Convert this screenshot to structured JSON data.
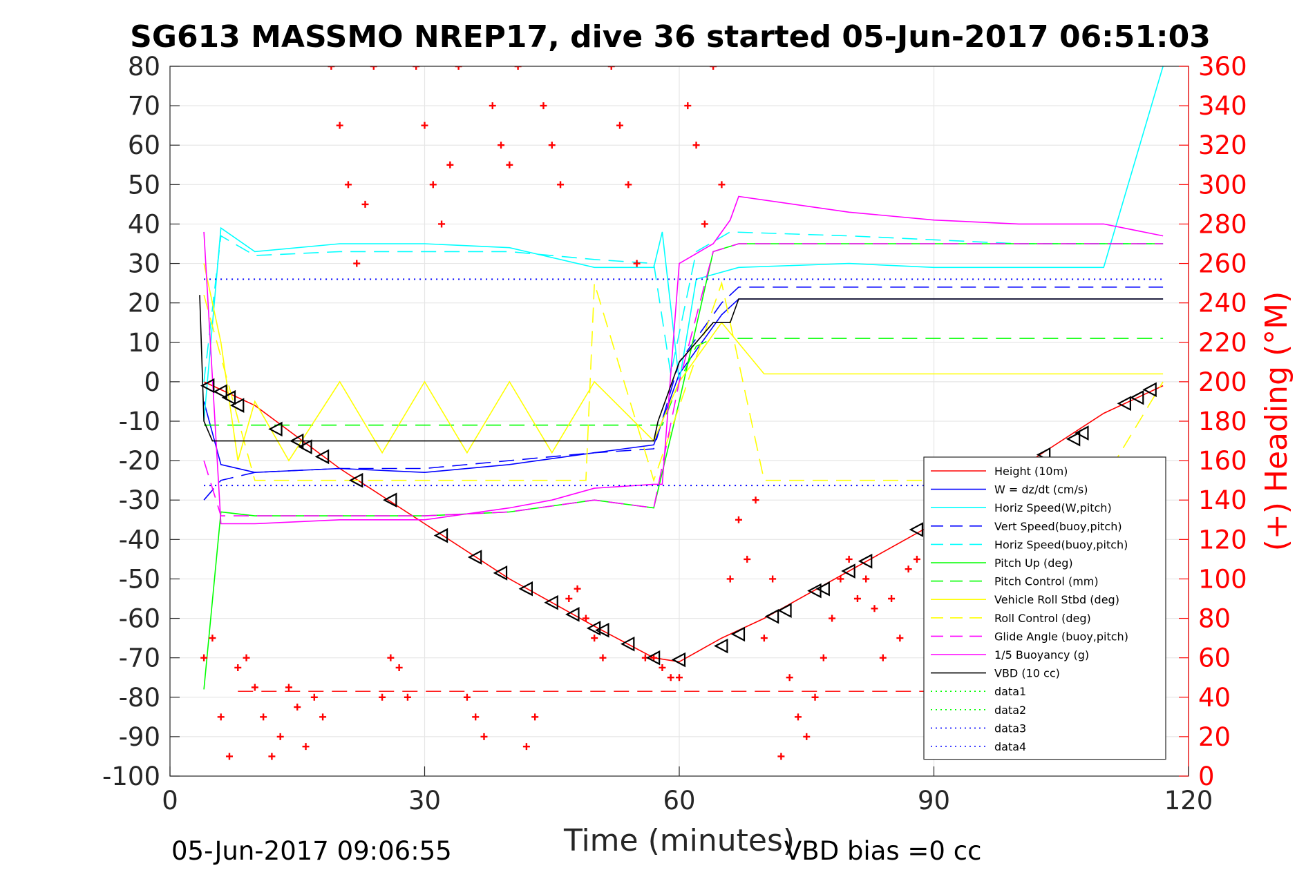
{
  "chart_data": {
    "type": "line",
    "title": "SG613 MASSMO NREP17, dive 36 started 05-Jun-2017 06:51:03",
    "xlabel": "Time (minutes)",
    "ylabel_right": "(+) Heading (°M)",
    "xlim": [
      0,
      120
    ],
    "ylim": [
      -100,
      80
    ],
    "ylim_right": [
      0,
      360
    ],
    "xticks": [
      "0",
      "30",
      "60",
      "90",
      "120"
    ],
    "yticks": [
      "80",
      "70",
      "60",
      "50",
      "40",
      "30",
      "20",
      "10",
      "0",
      "-10",
      "-20",
      "-30",
      "-40",
      "-50",
      "-60",
      "-70",
      "-80",
      "-90",
      "-100"
    ],
    "yticks_right": [
      "360",
      "340",
      "320",
      "300",
      "280",
      "260",
      "240",
      "220",
      "200",
      "180",
      "160",
      "140",
      "120",
      "100",
      "80",
      "60",
      "40",
      "20",
      "0"
    ],
    "grid": true,
    "legend_position": "lower-right",
    "footer_left": "05-Jun-2017 09:06:55",
    "footer_right": "VBD bias =0 cc",
    "legend": [
      {
        "label": "Height (10m)",
        "color": "#ff0000",
        "style": "solid"
      },
      {
        "label": "W = dz/dt (cm/s)",
        "color": "#0000ff",
        "style": "solid"
      },
      {
        "label": "Horiz Speed(W,pitch)",
        "color": "#00ffff",
        "style": "solid"
      },
      {
        "label": "Vert Speed(buoy,pitch)",
        "color": "#0000ff",
        "style": "dashed"
      },
      {
        "label": "Horiz Speed(buoy,pitch)",
        "color": "#00ffff",
        "style": "dashed"
      },
      {
        "label": "Pitch Up (deg)",
        "color": "#00ff00",
        "style": "solid"
      },
      {
        "label": "Pitch Control (mm)",
        "color": "#00ff00",
        "style": "dashed"
      },
      {
        "label": "Vehicle Roll Stbd (deg)",
        "color": "#ffff00",
        "style": "solid"
      },
      {
        "label": "Roll Control (deg)",
        "color": "#ffff00",
        "style": "dashed"
      },
      {
        "label": "Glide Angle (buoy,pitch)",
        "color": "#ff00ff",
        "style": "dashed"
      },
      {
        "label": "1/5 Buoyancy (g)",
        "color": "#ff00ff",
        "style": "solid"
      },
      {
        "label": "VBD (10 cc)",
        "color": "#000000",
        "style": "solid"
      },
      {
        "label": "data1",
        "color": "#00ff00",
        "style": "dotted"
      },
      {
        "label": "data2",
        "color": "#00ff00",
        "style": "dotted"
      },
      {
        "label": "data3",
        "color": "#0000ff",
        "style": "dotted"
      },
      {
        "label": "data4",
        "color": "#0000ff",
        "style": "dotted"
      }
    ],
    "series": [
      {
        "name": "Height (10m)",
        "color": "#ff0000",
        "style": "solid",
        "x": [
          4,
          10,
          20,
          30,
          40,
          50,
          57,
          60,
          65,
          70,
          80,
          90,
          100,
          110,
          117
        ],
        "y": [
          0,
          -6,
          -22,
          -36,
          -50,
          -62,
          -70,
          -71,
          -65,
          -60,
          -48,
          -36,
          -22,
          -8,
          -1
        ]
      },
      {
        "name": "W = dz/dt (cm/s)",
        "color": "#0000ff",
        "style": "solid",
        "x": [
          4,
          6,
          10,
          20,
          30,
          40,
          50,
          57,
          60,
          65,
          67,
          80,
          90,
          100,
          110,
          117
        ],
        "y": [
          -5,
          -21,
          -23,
          -22,
          -23,
          -21,
          -18,
          -16,
          2,
          17,
          21,
          21,
          21,
          21,
          21,
          21
        ]
      },
      {
        "name": "Horiz Speed(W,pitch)",
        "color": "#00ffff",
        "style": "solid",
        "x": [
          4,
          6,
          10,
          20,
          30,
          40,
          50,
          57,
          58,
          60,
          62,
          67,
          80,
          90,
          100,
          110,
          117
        ],
        "y": [
          -10,
          39,
          33,
          35,
          35,
          34,
          29,
          29,
          38,
          0,
          26,
          29,
          30,
          29,
          29,
          29,
          80
        ]
      },
      {
        "name": "Vert Speed(buoy,pitch)",
        "color": "#0000ff",
        "style": "dashed",
        "x": [
          4,
          6,
          10,
          20,
          30,
          40,
          50,
          57,
          60,
          65,
          67,
          80,
          90,
          100,
          110,
          117
        ],
        "y": [
          -30,
          -25,
          -23,
          -22,
          -22,
          -20,
          -18,
          -17,
          5,
          20,
          24,
          24,
          24,
          24,
          24,
          24
        ]
      },
      {
        "name": "Horiz Speed(buoy,pitch)",
        "color": "#00ffff",
        "style": "dashed",
        "x": [
          4,
          6,
          10,
          20,
          30,
          40,
          50,
          57,
          59,
          62,
          66,
          80,
          90,
          100,
          110,
          117
        ],
        "y": [
          0,
          37,
          32,
          33,
          33,
          33,
          31,
          30,
          2,
          33,
          38,
          37,
          36,
          35,
          35,
          35
        ]
      },
      {
        "name": "Pitch Up (deg)",
        "color": "#00ff00",
        "style": "solid",
        "x": [
          4,
          6,
          10,
          20,
          30,
          40,
          50,
          57,
          60,
          64,
          67,
          80,
          90,
          100,
          110,
          117
        ],
        "y": [
          -78,
          -33,
          -34,
          -34,
          -34,
          -33,
          -30,
          -32,
          -5,
          33,
          35,
          35,
          35,
          35,
          35,
          35
        ]
      },
      {
        "name": "Pitch Control (mm)",
        "color": "#00ff00",
        "style": "dashed",
        "x": [
          4,
          57,
          58,
          60,
          62,
          64,
          117
        ],
        "y": [
          -11,
          -11,
          -11,
          0,
          9,
          11,
          11
        ]
      },
      {
        "name": "Vehicle Roll Stbd (deg)",
        "color": "#ffff00",
        "style": "solid",
        "x": [
          4,
          6,
          8,
          10,
          14,
          20,
          25,
          30,
          35,
          40,
          45,
          50,
          57,
          60,
          65,
          70,
          80,
          90,
          100,
          110,
          117
        ],
        "y": [
          30,
          10,
          -20,
          -5,
          -20,
          0,
          -18,
          0,
          -18,
          0,
          -18,
          0,
          -15,
          0,
          15,
          2,
          2,
          2,
          2,
          2,
          2
        ]
      },
      {
        "name": "Roll Control (deg)",
        "color": "#ffff00",
        "style": "dashed",
        "x": [
          4,
          10,
          20,
          30,
          40,
          49,
          50,
          57,
          65,
          70,
          80,
          90,
          100,
          110,
          117
        ],
        "y": [
          22,
          -25,
          -25,
          -25,
          -25,
          -25,
          25,
          -25,
          25,
          -25,
          -25,
          -25,
          -25,
          -25,
          0
        ]
      },
      {
        "name": "Glide Angle (buoy,pitch)",
        "color": "#ff00ff",
        "style": "dashed",
        "x": [
          4,
          6,
          10,
          20,
          30,
          40,
          50,
          57,
          60,
          64,
          67,
          80,
          90,
          100,
          110,
          117
        ],
        "y": [
          -20,
          -34,
          -34,
          -34,
          -34,
          -33,
          -30,
          -32,
          0,
          33,
          35,
          35,
          35,
          35,
          35,
          35
        ]
      },
      {
        "name": "1/5 Buoyancy (g)",
        "color": "#ff00ff",
        "style": "solid",
        "x": [
          4,
          6,
          10,
          20,
          30,
          40,
          45,
          50,
          57,
          58,
          60,
          64,
          66,
          67,
          80,
          90,
          100,
          110,
          117
        ],
        "y": [
          38,
          -36,
          -36,
          -35,
          -35,
          -32,
          -30,
          -27,
          -26,
          -26,
          30,
          35,
          41,
          47,
          43,
          41,
          40,
          40,
          37
        ]
      },
      {
        "name": "VBD (10 cc)",
        "color": "#000000",
        "style": "solid",
        "x": [
          3.5,
          4,
          5,
          57,
          57.5,
          60,
          62,
          64,
          66,
          67,
          117
        ],
        "y": [
          22,
          -10,
          -15,
          -15,
          -10,
          5,
          10,
          15,
          15,
          21,
          21
        ]
      },
      {
        "name": "data1",
        "color": "#00ff00",
        "style": "dotted",
        "x": [],
        "y": []
      },
      {
        "name": "data2",
        "color": "#00ff00",
        "style": "dotted",
        "x": [],
        "y": []
      },
      {
        "name": "data3",
        "color": "#0000ff",
        "style": "dotted",
        "x": [
          4,
          117
        ],
        "y": [
          26,
          26
        ]
      },
      {
        "name": "data4",
        "color": "#0000ff",
        "style": "dotted",
        "x": [
          4,
          90
        ],
        "y": [
          -26.3,
          -26.3
        ]
      }
    ],
    "reference_lines": [
      {
        "color": "#ff0000",
        "style": "dashed",
        "axis": "left",
        "y": -78.5,
        "x": [
          8,
          117
        ]
      }
    ],
    "heading_points": {
      "color": "#ff0000",
      "marker": "+",
      "axis": "right",
      "x": [
        4,
        5,
        6,
        7,
        8,
        9,
        10,
        11,
        12,
        13,
        14,
        15,
        16,
        17,
        18,
        19,
        20,
        21,
        22,
        23,
        24,
        25,
        26,
        27,
        28,
        29,
        30,
        31,
        32,
        33,
        34,
        35,
        36,
        37,
        38,
        39,
        40,
        41,
        42,
        43,
        44,
        45,
        46,
        47,
        48,
        49,
        50,
        51,
        52,
        53,
        54,
        55,
        56,
        57,
        58,
        59,
        60,
        61,
        62,
        63,
        64,
        65,
        66,
        67,
        68,
        69,
        70,
        71,
        72,
        73,
        74,
        75,
        76,
        77,
        78,
        79,
        80,
        81,
        82,
        83,
        84,
        85,
        86,
        87,
        88
      ],
      "y": [
        60,
        70,
        30,
        10,
        55,
        60,
        45,
        30,
        10,
        20,
        45,
        35,
        15,
        40,
        30,
        360,
        330,
        300,
        260,
        290,
        360,
        40,
        60,
        55,
        40,
        360,
        330,
        300,
        280,
        310,
        360,
        40,
        30,
        20,
        340,
        320,
        310,
        360,
        15,
        30,
        340,
        320,
        300,
        90,
        95,
        80,
        70,
        60,
        360,
        330,
        300,
        260,
        60,
        60,
        55,
        50,
        50,
        340,
        320,
        280,
        360,
        300,
        100,
        130,
        110,
        140,
        70,
        100,
        10,
        50,
        30,
        20,
        40,
        60,
        80,
        100,
        110,
        90,
        100,
        85,
        60,
        90,
        70,
        105,
        110
      ]
    },
    "depth_markers": {
      "marker": "triangle-left",
      "color": "#000000",
      "axis": "left",
      "x": [
        4.5,
        6,
        7,
        8,
        12.5,
        15,
        16,
        18,
        22,
        26,
        32,
        36,
        39,
        42,
        45,
        47.5,
        50,
        51,
        54,
        57,
        60,
        65,
        67,
        71,
        72.5,
        76,
        77,
        80,
        82,
        88,
        103,
        106.5,
        107.5,
        112.5,
        114,
        115.5
      ],
      "y": [
        -1,
        -2.5,
        -4,
        -6,
        -12,
        -15,
        -16.5,
        -19,
        -25,
        -30,
        -39,
        -44.5,
        -48.5,
        -52.5,
        -56,
        -59,
        -62.5,
        -63,
        -66.5,
        -70,
        -70.5,
        -67,
        -64,
        -59.5,
        -58,
        -53,
        -52.5,
        -48,
        -45.5,
        -37.5,
        -18.5,
        -14.5,
        -13,
        -5.5,
        -4,
        -2
      ]
    }
  }
}
